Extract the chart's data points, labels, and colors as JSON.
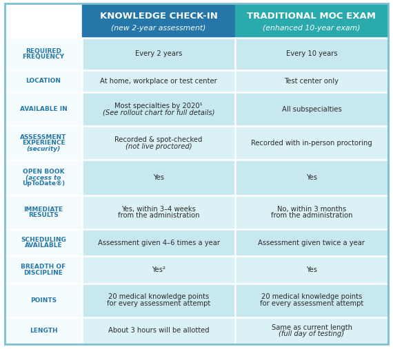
{
  "title_left": "KNOWLEDGE CHECK-IN",
  "subtitle_left": "(new 2-year assessment)",
  "title_right": "TRADITIONAL MOC EXAM",
  "subtitle_right": "(enhanced 10-year exam)",
  "header_left_color": "#2477a8",
  "header_right_color": "#2baaad",
  "row_label_color": "#2477a8",
  "cell_bg_even": "#c8e8f0",
  "cell_bg_odd": "#daf2f5",
  "label_col_bg": "#f5fcfd",
  "divider_color": "#ffffff",
  "row_labels": [
    "REQUIRED\nFREQUENCY",
    "LOCATION",
    "AVAILABLE IN",
    "ASSESSMENT\nEXPERIENCE\n(security)",
    "OPEN BOOK\n(access to\nUpToDate®)",
    "IMMEDIATE\nRESULTS",
    "SCHEDULING\nAVAILABLE",
    "BREADTH OF\nDISCIPLINE",
    "POINTS",
    "LENGTH"
  ],
  "row_label_italic": [
    [
      false,
      false
    ],
    [
      false
    ],
    [
      false
    ],
    [
      false,
      false,
      true
    ],
    [
      false,
      true,
      false
    ],
    [
      false,
      false
    ],
    [
      false,
      false
    ],
    [
      false,
      false
    ],
    [
      false
    ],
    [
      false
    ]
  ],
  "col1_values": [
    "Every 2 years",
    "At home, workplace or test center",
    "Most specialties by 2020¹\n(See rollout chart for full details)",
    "Recorded & spot-checked\n(not live proctored)",
    "Yes",
    "Yes, within 3–4 weeks\nfrom the administration",
    "Assessment given 4–6 times a year",
    "Yes²",
    "20 medical knowledge points\nfor every assessment attempt",
    "About 3 hours will be allotted"
  ],
  "col2_values": [
    "Every 10 years",
    "Test center only",
    "All subspecialties",
    "Recorded with in-person proctoring",
    "Yes",
    "No, within 3 months\nfrom the administration",
    "Assessment given twice a year",
    "Yes",
    "20 medical knowledge points\nfor every assessment attempt",
    "Same as current length\n(full day of testing)"
  ],
  "col1_italic_lines": [
    [
      false
    ],
    [
      false
    ],
    [
      false,
      true
    ],
    [
      false,
      true
    ],
    [
      false
    ],
    [
      false,
      false
    ],
    [
      false
    ],
    [
      false
    ],
    [
      false,
      false
    ],
    [
      false
    ]
  ],
  "col2_italic_lines": [
    [
      false
    ],
    [
      false
    ],
    [
      false
    ],
    [
      false
    ],
    [
      false
    ],
    [
      false,
      false
    ],
    [
      false
    ],
    [
      false
    ],
    [
      false,
      false
    ],
    [
      false,
      true
    ]
  ],
  "bg_color": "#ffffff",
  "outer_border_color": "#7bbfd0",
  "row_heights": [
    1.05,
    0.72,
    1.1,
    1.1,
    1.15,
    1.1,
    0.88,
    0.88,
    1.1,
    0.88
  ]
}
